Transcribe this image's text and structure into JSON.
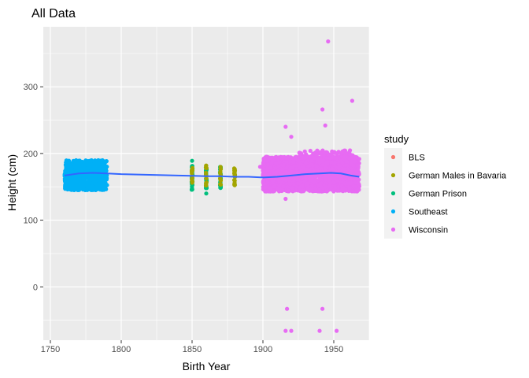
{
  "chart_data": {
    "type": "scatter",
    "title": "All Data",
    "xlabel": "Birth Year",
    "ylabel": "Height (cm)",
    "xlim": [
      1745,
      1975
    ],
    "ylim": [
      -80,
      390
    ],
    "x_ticks": [
      1750,
      1800,
      1850,
      1900,
      1950
    ],
    "y_ticks": [
      0,
      100,
      200,
      300
    ],
    "grid": true,
    "background": "#ebebeb",
    "legend": {
      "title": "study",
      "placement": "right",
      "entries": [
        {
          "name": "BLS",
          "color": "#F8766D"
        },
        {
          "name": "German Males in Bavaria",
          "color": "#A3A500"
        },
        {
          "name": "German Prison",
          "color": "#00BF7D"
        },
        {
          "name": "Southeast",
          "color": "#00B0F6"
        },
        {
          "name": "Wisconsin",
          "color": "#E76BF3"
        }
      ]
    },
    "series": [
      {
        "name": "Southeast",
        "color": "#00B0F6",
        "clusters": [
          {
            "x_range": [
              1760,
              1790
            ],
            "y_range": [
              145,
              190
            ],
            "count": 700
          }
        ],
        "points": []
      },
      {
        "name": "German Prison",
        "color": "#00BF7D",
        "clusters": [
          {
            "x": 1850,
            "y_range": [
              145,
              185
            ],
            "count": 40
          },
          {
            "x": 1860,
            "y_range": [
              148,
              180
            ],
            "count": 35
          },
          {
            "x": 1870,
            "y_range": [
              148,
              180
            ],
            "count": 35
          }
        ],
        "points": [
          {
            "x": 1850,
            "y": 189
          },
          {
            "x": 1860,
            "y": 140
          }
        ]
      },
      {
        "name": "German Males in Bavaria",
        "color": "#A3A500",
        "clusters": [
          {
            "x": 1850,
            "y_range": [
              155,
              180
            ],
            "count": 12
          },
          {
            "x": 1860,
            "y_range": [
              152,
              183
            ],
            "count": 15
          },
          {
            "x": 1870,
            "y_range": [
              150,
              182
            ],
            "count": 15
          },
          {
            "x": 1880,
            "y_range": [
              152,
              178
            ],
            "count": 25
          }
        ],
        "points": []
      },
      {
        "name": "Wisconsin",
        "color": "#E76BF3",
        "clusters": [
          {
            "x_range": [
              1900,
              1968
            ],
            "y_range": [
              143,
              195
            ],
            "count": 2500
          },
          {
            "x_range": [
              1925,
              1965
            ],
            "y_range": [
              185,
              205
            ],
            "count": 150
          }
        ],
        "points": [
          {
            "x": 1946,
            "y": 368
          },
          {
            "x": 1963,
            "y": 279
          },
          {
            "x": 1942,
            "y": 266
          },
          {
            "x": 1944,
            "y": 242
          },
          {
            "x": 1916,
            "y": 240
          },
          {
            "x": 1920,
            "y": 225
          },
          {
            "x": 1900,
            "y": 182
          },
          {
            "x": 1898,
            "y": 180
          },
          {
            "x": 1916,
            "y": 132
          },
          {
            "x": 1917,
            "y": -33
          },
          {
            "x": 1942,
            "y": -33
          },
          {
            "x": 1916,
            "y": -66
          },
          {
            "x": 1920,
            "y": -66
          },
          {
            "x": 1940,
            "y": -66
          },
          {
            "x": 1952,
            "y": -66
          }
        ]
      }
    ],
    "smooth_line": {
      "color": "#3366FF",
      "points": [
        [
          1760,
          167
        ],
        [
          1770,
          170
        ],
        [
          1780,
          171
        ],
        [
          1790,
          170
        ],
        [
          1800,
          169
        ],
        [
          1820,
          168
        ],
        [
          1840,
          167
        ],
        [
          1860,
          166
        ],
        [
          1870,
          166
        ],
        [
          1880,
          165
        ],
        [
          1890,
          165
        ],
        [
          1900,
          164
        ],
        [
          1910,
          165
        ],
        [
          1920,
          167
        ],
        [
          1930,
          169
        ],
        [
          1940,
          170
        ],
        [
          1948,
          171
        ],
        [
          1955,
          170
        ],
        [
          1962,
          167
        ],
        [
          1968,
          165
        ]
      ]
    }
  }
}
